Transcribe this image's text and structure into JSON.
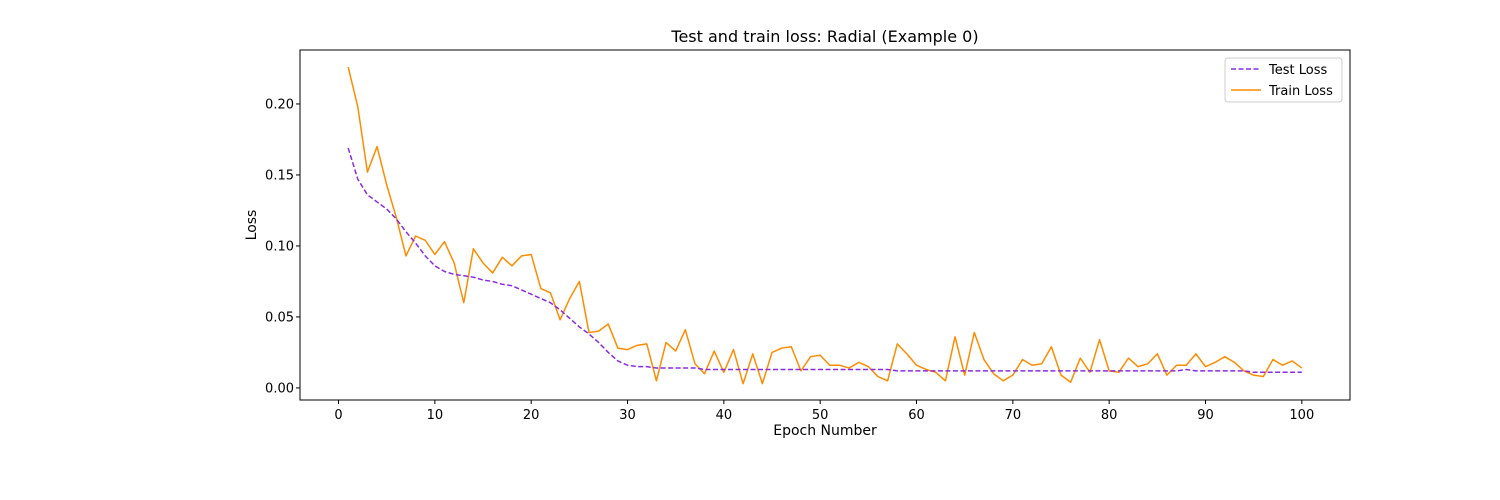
{
  "chart_data": {
    "type": "line",
    "title": "Test and train loss: Radial (Example 0)",
    "xlabel": "Epoch Number",
    "ylabel": "Loss",
    "xlim": [
      -4,
      105
    ],
    "ylim": [
      -0.0085,
      0.238
    ],
    "xticks": [
      0,
      10,
      20,
      30,
      40,
      50,
      60,
      70,
      80,
      90,
      100
    ],
    "yticks": [
      0.0,
      0.05,
      0.1,
      0.15,
      0.2
    ],
    "ytick_labels": [
      "0.00",
      "0.05",
      "0.10",
      "0.15",
      "0.20"
    ],
    "grid": false,
    "legend_position": "top-right",
    "series": [
      {
        "name": "Test Loss",
        "color": "#8a2be2",
        "style": "dashed",
        "x": [
          1,
          2,
          3,
          4,
          5,
          6,
          7,
          8,
          9,
          10,
          11,
          12,
          13,
          14,
          15,
          16,
          17,
          18,
          19,
          20,
          21,
          22,
          23,
          24,
          25,
          26,
          27,
          28,
          29,
          30,
          31,
          32,
          33,
          34,
          35,
          36,
          37,
          38,
          39,
          40,
          41,
          42,
          43,
          44,
          45,
          46,
          47,
          48,
          49,
          50,
          51,
          52,
          53,
          54,
          55,
          56,
          57,
          58,
          59,
          60,
          61,
          62,
          63,
          64,
          65,
          66,
          67,
          68,
          69,
          70,
          71,
          72,
          73,
          74,
          75,
          76,
          77,
          78,
          79,
          80,
          81,
          82,
          83,
          84,
          85,
          86,
          87,
          88,
          89,
          90,
          91,
          92,
          93,
          94,
          95,
          96,
          97,
          98,
          99,
          100
        ],
        "values": [
          0.169,
          0.147,
          0.136,
          0.131,
          0.126,
          0.119,
          0.11,
          0.102,
          0.093,
          0.086,
          0.082,
          0.08,
          0.079,
          0.078,
          0.076,
          0.075,
          0.073,
          0.072,
          0.069,
          0.066,
          0.063,
          0.06,
          0.055,
          0.049,
          0.043,
          0.038,
          0.032,
          0.025,
          0.019,
          0.016,
          0.015,
          0.015,
          0.014,
          0.014,
          0.014,
          0.014,
          0.014,
          0.013,
          0.013,
          0.013,
          0.013,
          0.013,
          0.013,
          0.013,
          0.013,
          0.013,
          0.013,
          0.013,
          0.013,
          0.013,
          0.013,
          0.013,
          0.013,
          0.013,
          0.013,
          0.013,
          0.013,
          0.012,
          0.012,
          0.012,
          0.012,
          0.012,
          0.012,
          0.012,
          0.012,
          0.012,
          0.012,
          0.012,
          0.012,
          0.012,
          0.012,
          0.012,
          0.012,
          0.012,
          0.012,
          0.012,
          0.012,
          0.012,
          0.012,
          0.012,
          0.012,
          0.012,
          0.012,
          0.012,
          0.012,
          0.012,
          0.012,
          0.013,
          0.012,
          0.012,
          0.012,
          0.012,
          0.012,
          0.012,
          0.011,
          0.011,
          0.011,
          0.011,
          0.011,
          0.011
        ]
      },
      {
        "name": "Train Loss",
        "color": "#ff8c00",
        "style": "solid",
        "x": [
          1,
          2,
          3,
          4,
          5,
          6,
          7,
          8,
          9,
          10,
          11,
          12,
          13,
          14,
          15,
          16,
          17,
          18,
          19,
          20,
          21,
          22,
          23,
          24,
          25,
          26,
          27,
          28,
          29,
          30,
          31,
          32,
          33,
          34,
          35,
          36,
          37,
          38,
          39,
          40,
          41,
          42,
          43,
          44,
          45,
          46,
          47,
          48,
          49,
          50,
          51,
          52,
          53,
          54,
          55,
          56,
          57,
          58,
          59,
          60,
          61,
          62,
          63,
          64,
          65,
          66,
          67,
          68,
          69,
          70,
          71,
          72,
          73,
          74,
          75,
          76,
          77,
          78,
          79,
          80,
          81,
          82,
          83,
          84,
          85,
          86,
          87,
          88,
          89,
          90,
          91,
          92,
          93,
          94,
          95,
          96,
          97,
          98,
          99,
          100
        ],
        "values": [
          0.226,
          0.198,
          0.152,
          0.17,
          0.143,
          0.12,
          0.093,
          0.107,
          0.104,
          0.094,
          0.103,
          0.088,
          0.06,
          0.098,
          0.088,
          0.081,
          0.092,
          0.086,
          0.093,
          0.094,
          0.07,
          0.067,
          0.048,
          0.063,
          0.075,
          0.039,
          0.04,
          0.045,
          0.028,
          0.027,
          0.03,
          0.031,
          0.005,
          0.032,
          0.026,
          0.041,
          0.017,
          0.01,
          0.026,
          0.011,
          0.027,
          0.003,
          0.024,
          0.003,
          0.025,
          0.028,
          0.029,
          0.012,
          0.022,
          0.023,
          0.016,
          0.016,
          0.014,
          0.018,
          0.015,
          0.008,
          0.005,
          0.031,
          0.024,
          0.016,
          0.013,
          0.011,
          0.005,
          0.036,
          0.009,
          0.039,
          0.02,
          0.01,
          0.005,
          0.009,
          0.02,
          0.016,
          0.017,
          0.029,
          0.009,
          0.004,
          0.021,
          0.011,
          0.034,
          0.012,
          0.011,
          0.021,
          0.015,
          0.017,
          0.024,
          0.009,
          0.016,
          0.016,
          0.024,
          0.015,
          0.018,
          0.022,
          0.018,
          0.012,
          0.009,
          0.008,
          0.02,
          0.016,
          0.019,
          0.014
        ]
      }
    ]
  }
}
